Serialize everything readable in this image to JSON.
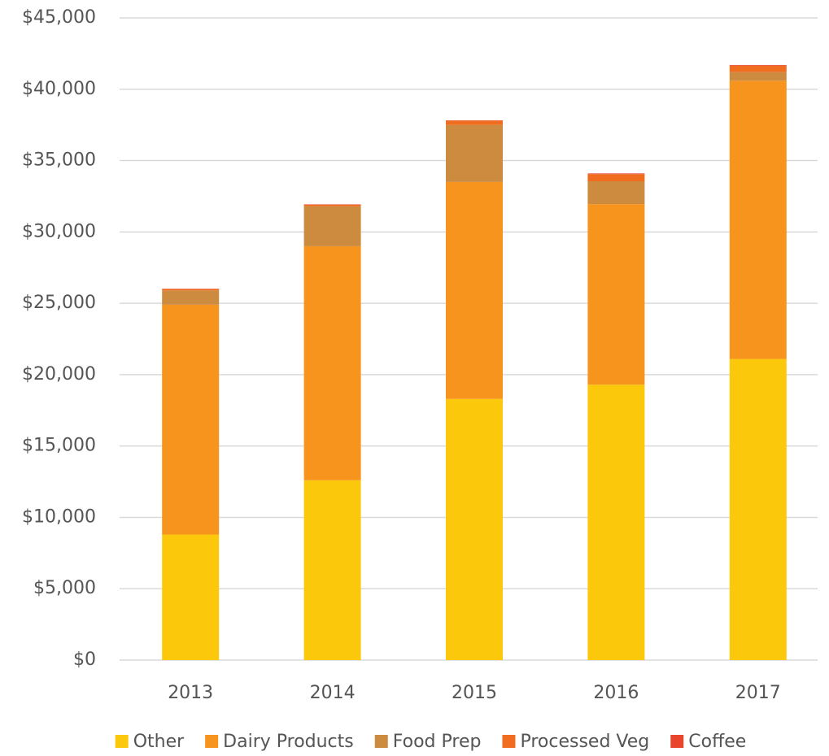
{
  "chart_data": {
    "type": "stacked_bar",
    "categories": [
      "2013",
      "2014",
      "2015",
      "2016",
      "2017"
    ],
    "series": [
      {
        "name": "Other",
        "color": "#fcc80b",
        "values": [
          8800,
          12600,
          18300,
          19300,
          21100
        ]
      },
      {
        "name": "Dairy Products",
        "color": "#f7941e",
        "values": [
          16100,
          16400,
          15200,
          12650,
          19500
        ]
      },
      {
        "name": "Food Prep",
        "color": "#cd8b40",
        "values": [
          1000,
          2800,
          4000,
          1600,
          600
        ]
      },
      {
        "name": "Processed Veg",
        "color": "#f06c1f",
        "values": [
          100,
          100,
          300,
          500,
          450
        ]
      },
      {
        "name": "Coffee",
        "color": "#e8452c",
        "values": [
          20,
          30,
          20,
          50,
          50
        ]
      }
    ],
    "ylim": [
      0,
      45000
    ],
    "yticks": [
      {
        "value": 0,
        "label": "$0"
      },
      {
        "value": 5000,
        "label": "$5,000"
      },
      {
        "value": 10000,
        "label": "$10,000"
      },
      {
        "value": 15000,
        "label": "$15,000"
      },
      {
        "value": 20000,
        "label": "$20,000"
      },
      {
        "value": 25000,
        "label": "$25,000"
      },
      {
        "value": 30000,
        "label": "$30,000"
      },
      {
        "value": 35000,
        "label": "$35,000"
      },
      {
        "value": 40000,
        "label": "$40,000"
      },
      {
        "value": 45000,
        "label": "$45,000"
      }
    ],
    "grid": true
  }
}
